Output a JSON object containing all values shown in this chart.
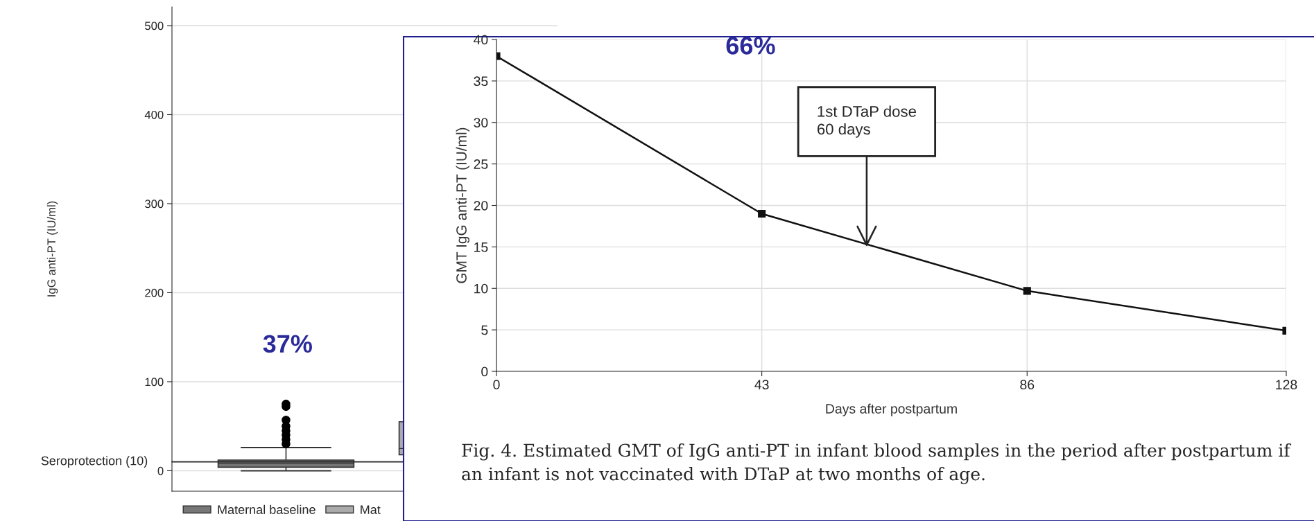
{
  "chart_data": [
    {
      "type": "box",
      "ylabel": "IgG anti-PT (IU/ml)",
      "categories": [
        null,
        null
      ],
      "series": [
        {
          "name": "Maternal baseline",
          "color": "#777777",
          "boxes": [
            {
              "low": 0,
              "q1": 4,
              "median": 8,
              "q3": 12,
              "high": 26,
              "outliers": [
                30,
                35,
                40,
                45,
                50,
                57,
                72,
                75
              ]
            },
            null
          ]
        },
        {
          "name": "Mat",
          "color": "#aaaaaa",
          "boxes": [
            null,
            {
              "low": 18,
              "q1": 18,
              "median": 25,
              "q3": 55,
              "high": 55
            }
          ]
        }
      ],
      "ylim": [
        -23,
        521
      ],
      "yticks": [
        0,
        100,
        200,
        300,
        400,
        500
      ],
      "grid": "y",
      "legend": "bottom",
      "ref_lines": [
        {
          "axis": "y",
          "value": 10,
          "label": "Seroprotection (10)",
          "color": "#222222"
        }
      ],
      "annotations": [
        "37%"
      ]
    },
    {
      "type": "line",
      "x": [
        0,
        43,
        86,
        128
      ],
      "xlabel": "Days after postpartum",
      "ylabel": "GMT IgG anti-PT (IU/ml)",
      "series": [
        {
          "color": "#111111",
          "values": [
            38,
            19,
            9.7,
            4.9
          ]
        }
      ],
      "xlim": [
        0,
        128
      ],
      "xticks": [
        0,
        43,
        86,
        128
      ],
      "ylim": [
        0,
        40
      ],
      "yticks": [
        0,
        5,
        10,
        15,
        20,
        25,
        30,
        35,
        40
      ],
      "grid": true,
      "marker": "square",
      "line_style": "solid",
      "annotations": [
        {
          "text": "1st DTaP dose\n60 days",
          "x": 60,
          "y": 15
        },
        "66%",
        "Fig. 4. Estimated GMT of IgG anti-PT in infant blood samples in the period after postpartum if an infant is not vaccinated with DTaP at two months of age."
      ]
    }
  ]
}
